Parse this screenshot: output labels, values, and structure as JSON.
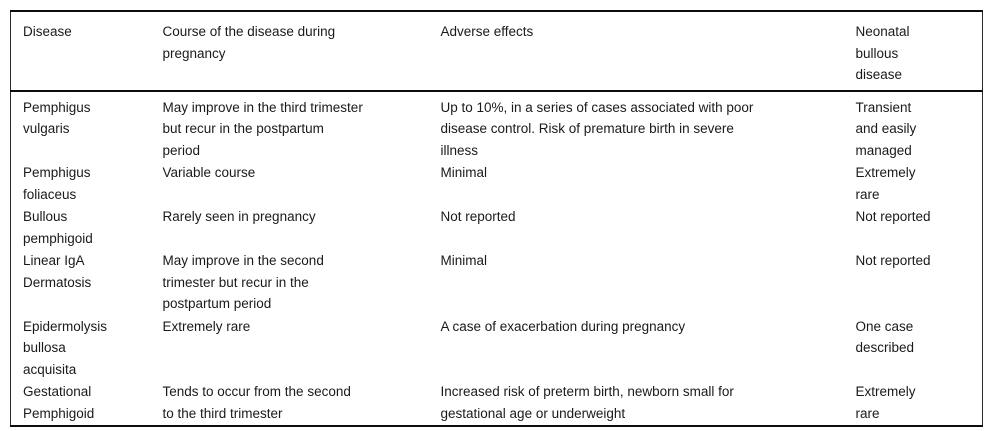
{
  "colors": {
    "background": "#ffffff",
    "text": "#1a1a1a",
    "rule": "#0d0d0d"
  },
  "table": {
    "columns": [
      {
        "label": "Disease"
      },
      {
        "label": "Course of the disease during\npregnancy"
      },
      {
        "label": "Adverse effects"
      },
      {
        "label": "Neonatal\nbullous\ndisease"
      }
    ],
    "rows": [
      {
        "disease": "Pemphigus\nvulgaris",
        "course": "May improve in the third trimester\nbut recur in the postpartum\nperiod",
        "adverse_effects": "Up to 10%, in a series of cases associated with poor\ndisease control. Risk of premature birth in severe\nillness",
        "neonatal": "Transient\nand easily\nmanaged"
      },
      {
        "disease": "Pemphigus\nfoliaceus",
        "course": "Variable course",
        "adverse_effects": "Minimal",
        "neonatal": "Extremely\nrare"
      },
      {
        "disease": "Bullous\npemphigoid",
        "course": "Rarely seen in pregnancy",
        "adverse_effects": "Not reported",
        "neonatal": "Not reported"
      },
      {
        "disease": "Linear IgA\nDermatosis",
        "course": "May improve in the second\ntrimester but recur in the\npostpartum period",
        "adverse_effects": "Minimal",
        "neonatal": "Not reported"
      },
      {
        "disease": "Epidermolysis\nbullosa\nacquisita",
        "course": "Extremely rare",
        "adverse_effects": "A case of exacerbation during pregnancy",
        "neonatal": "One case\ndescribed"
      },
      {
        "disease": "Gestational\nPemphigoid",
        "course": "Tends to occur from the second\nto the third trimester",
        "adverse_effects": "Increased risk of preterm birth, newborn small for\ngestational age or underweight",
        "neonatal": "Extremely\nrare"
      }
    ]
  }
}
